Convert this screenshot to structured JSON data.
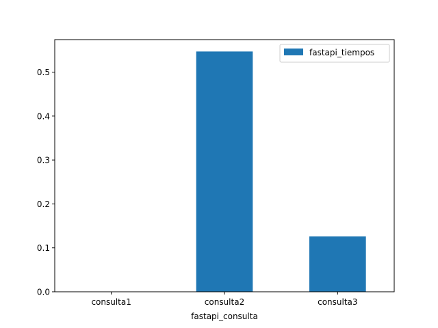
{
  "chart_data": {
    "type": "bar",
    "title": "",
    "xlabel": "fastapi_consulta",
    "ylabel": "",
    "categories": [
      "consulta1",
      "consulta2",
      "consulta3"
    ],
    "series": [
      {
        "name": "fastapi_tiempos",
        "values": [
          0.0,
          0.547,
          0.126
        ],
        "color": "#1f77b4"
      }
    ],
    "ylim": [
      0,
      0.574
    ],
    "yticks": [
      0.0,
      0.1,
      0.2,
      0.3,
      0.4,
      0.5
    ],
    "ytick_labels": [
      "0.0",
      "0.1",
      "0.2",
      "0.3",
      "0.4",
      "0.5"
    ],
    "grid": false,
    "legend_position": "top-right"
  }
}
